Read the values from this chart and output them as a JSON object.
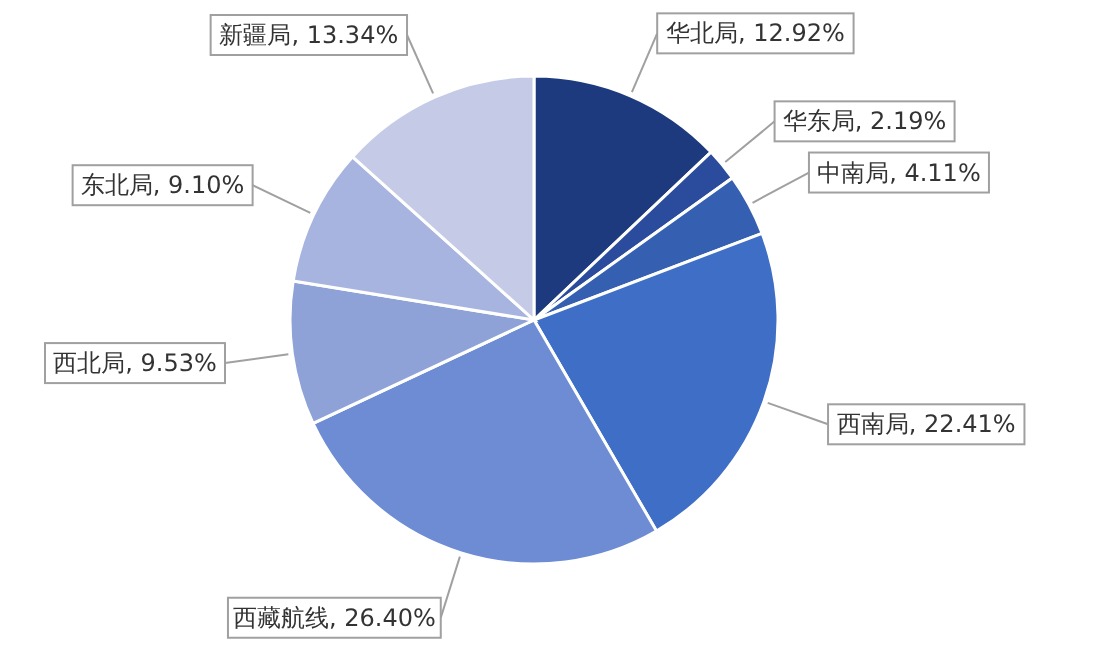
{
  "chart_data": {
    "type": "pie",
    "categories": [
      "华北局",
      "华东局",
      "中南局",
      "西南局",
      "西藏航线",
      "西北局",
      "东北局",
      "新疆局"
    ],
    "values": [
      12.92,
      2.19,
      4.11,
      22.41,
      26.4,
      9.53,
      9.1,
      13.34
    ],
    "value_labels": [
      "12.92%",
      "2.19%",
      "4.11%",
      "22.41%",
      "26.40%",
      "9.53%",
      "9.10%",
      "13.34%"
    ],
    "colors": [
      "#1e3a7e",
      "#2b4c9c",
      "#3560b2",
      "#3e6ec6",
      "#6d8cd4",
      "#8ea2d8",
      "#a6b4df",
      "#c5cbe6"
    ],
    "legend": false
  }
}
